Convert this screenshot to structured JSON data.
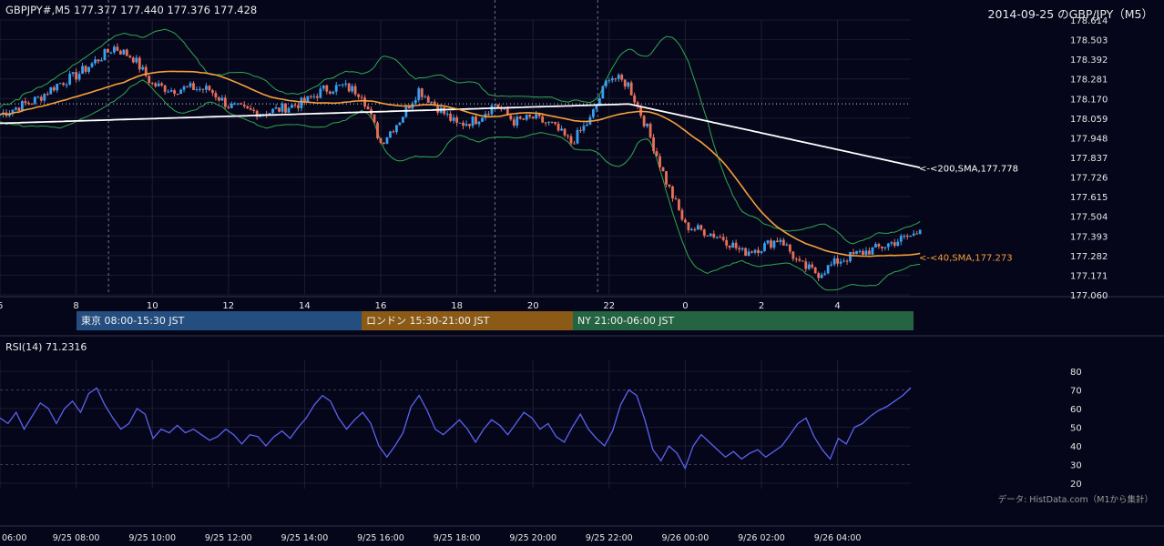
{
  "header": {
    "symbol_ohlc": "GBPJPY#,M5 177.377 177.440 177.376 177.428",
    "title": "2014-09-25 のGBP/JPY（M5）"
  },
  "chart_data": [
    {
      "type": "candlestick",
      "symbol": "GBPJPY#",
      "timeframe": "M5",
      "ohlc_last": {
        "open": 177.377,
        "high": 177.44,
        "low": 177.376,
        "close": 177.428
      },
      "ylim": [
        177.06,
        178.614
      ],
      "y_ticks": [
        "178.614",
        "178.503",
        "178.392",
        "178.281",
        "178.170",
        "178.059",
        "177.948",
        "177.837",
        "177.726",
        "177.615",
        "177.504",
        "177.393",
        "177.282",
        "177.171",
        "177.060"
      ],
      "x_ticks": [
        "6",
        "8",
        "10",
        "12",
        "14",
        "16",
        "18",
        "20",
        "22",
        "0",
        "2",
        "4"
      ],
      "grid": true,
      "price_path": [
        [
          6,
          178.08
        ],
        [
          7,
          178.17
        ],
        [
          7.5,
          178.25
        ],
        [
          8,
          178.3
        ],
        [
          8.5,
          178.38
        ],
        [
          9,
          178.46
        ],
        [
          9.5,
          178.4
        ],
        [
          10,
          178.25
        ],
        [
          10.5,
          178.22
        ],
        [
          11,
          178.23
        ],
        [
          11.5,
          178.22
        ],
        [
          12,
          178.13
        ],
        [
          12.5,
          178.1
        ],
        [
          13,
          178.09
        ],
        [
          13.5,
          178.12
        ],
        [
          14,
          178.15
        ],
        [
          14.5,
          178.22
        ],
        [
          15,
          178.24
        ],
        [
          15.5,
          178.2
        ],
        [
          16,
          177.92
        ],
        [
          16.5,
          178.05
        ],
        [
          17,
          178.22
        ],
        [
          17.5,
          178.12
        ],
        [
          18,
          178.02
        ],
        [
          18.5,
          178.05
        ],
        [
          19,
          178.14
        ],
        [
          19.5,
          178.04
        ],
        [
          20,
          178.06
        ],
        [
          20.5,
          178.02
        ],
        [
          21,
          177.92
        ],
        [
          21.5,
          178.05
        ],
        [
          22,
          178.3
        ],
        [
          22.5,
          178.25
        ],
        [
          23,
          178.0
        ],
        [
          23.5,
          177.7
        ],
        [
          24,
          177.45
        ],
        [
          24.5,
          177.42
        ],
        [
          25,
          177.38
        ],
        [
          25.5,
          177.3
        ],
        [
          26,
          177.33
        ],
        [
          26.5,
          177.38
        ],
        [
          27,
          177.23
        ],
        [
          27.5,
          177.18
        ],
        [
          28,
          177.25
        ],
        [
          28.5,
          177.29
        ],
        [
          29,
          177.32
        ],
        [
          29.5,
          177.36
        ],
        [
          30,
          177.4
        ],
        [
          30.2,
          177.428
        ]
      ],
      "sma40": {
        "label": "<-<40,SMA,177.273",
        "value": 177.273,
        "color": "#f4a13a"
      },
      "sma200": {
        "label": "<-<200,SMA,177.778",
        "value": 177.778,
        "color": "#ffffff"
      },
      "bollinger_color": "#2fa84f",
      "reference_level": 178.14,
      "sessions": [
        {
          "label": "東京 08:00-15:30 JST",
          "color": "#244e7f"
        },
        {
          "label": "ロンドン 15:30-21:00 JST",
          "color": "#8a5a16"
        },
        {
          "label": "NY 21:00-06:00 JST",
          "color": "#256443"
        }
      ]
    },
    {
      "type": "line",
      "title": "RSI(14) 71.2316",
      "series": [
        {
          "name": "RSI(14)",
          "color": "#5b63f0",
          "values": [
            55,
            52,
            58,
            49,
            56,
            63,
            60,
            52,
            60,
            64,
            58,
            68,
            71,
            62,
            55,
            49,
            52,
            60,
            57,
            44,
            49,
            47,
            51,
            47,
            49,
            46,
            43,
            45,
            49,
            46,
            41,
            46,
            45,
            40,
            45,
            48,
            44,
            50,
            55,
            62,
            67,
            64,
            55,
            49,
            54,
            58,
            52,
            40,
            34,
            40,
            47,
            61,
            67,
            59,
            49,
            46,
            50,
            54,
            49,
            42,
            49,
            54,
            51,
            46,
            52,
            58,
            55,
            49,
            52,
            45,
            42,
            50,
            57,
            49,
            44,
            40,
            48,
            62,
            70,
            67,
            54,
            38,
            32,
            40,
            36,
            28,
            40,
            46,
            42,
            38,
            34,
            37,
            33,
            36,
            38,
            34,
            37,
            40,
            46,
            52,
            55,
            45,
            38,
            33,
            44,
            41,
            50,
            52,
            56,
            59,
            61,
            64,
            67,
            71.2316
          ]
        }
      ],
      "x_ticks": [
        "06:00",
        "9/25 08:00",
        "9/25 10:00",
        "9/25 12:00",
        "9/25 14:00",
        "9/25 16:00",
        "9/25 18:00",
        "9/25 20:00",
        "9/25 22:00",
        "9/26 00:00",
        "9/26 02:00",
        "9/26 04:00"
      ],
      "y_ticks": [
        "80",
        "70",
        "60",
        "50",
        "40",
        "30",
        "20"
      ],
      "ylim": [
        17,
        83
      ],
      "levels": [
        30,
        70
      ]
    }
  ],
  "source_note": "データ: HistData.com（M1から集計）"
}
